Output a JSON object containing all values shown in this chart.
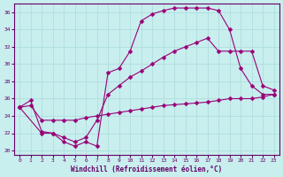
{
  "xlabel": "Windchill (Refroidissement éolien,°C)",
  "xlim": [
    -0.5,
    23.5
  ],
  "ylim": [
    19.5,
    37
  ],
  "yticks": [
    20,
    22,
    24,
    26,
    28,
    30,
    32,
    34,
    36
  ],
  "xticks": [
    0,
    1,
    2,
    3,
    4,
    5,
    6,
    7,
    8,
    9,
    10,
    11,
    12,
    13,
    14,
    15,
    16,
    17,
    18,
    19,
    20,
    21,
    22,
    23
  ],
  "bg_color": "#c8eeee",
  "line_color": "#990077",
  "grid_color": "#b0dede",
  "line1_x": [
    0,
    1,
    2,
    3,
    4,
    5,
    6,
    7,
    8,
    9,
    10,
    11,
    12,
    13,
    14,
    15,
    16,
    17,
    18,
    19,
    20,
    21,
    22,
    23
  ],
  "line1_y": [
    25.0,
    25.8,
    22.2,
    22.0,
    21.0,
    20.5,
    21.0,
    20.5,
    29.0,
    29.5,
    31.5,
    35.0,
    35.8,
    36.2,
    36.5,
    36.5,
    36.5,
    36.5,
    36.2,
    34.0,
    29.5,
    27.5,
    26.5,
    26.5
  ],
  "line2_x": [
    0,
    2,
    3,
    4,
    5,
    6,
    7,
    8,
    9,
    10,
    11,
    12,
    13,
    14,
    15,
    16,
    17,
    18,
    19,
    20,
    21,
    22,
    23
  ],
  "line2_y": [
    25.0,
    22.0,
    22.0,
    21.5,
    21.0,
    21.5,
    23.5,
    26.5,
    27.5,
    28.5,
    29.2,
    30.0,
    30.8,
    31.5,
    32.0,
    32.5,
    33.0,
    31.5,
    31.5,
    31.5,
    31.5,
    27.5,
    27.0
  ],
  "line3_x": [
    0,
    1,
    2,
    3,
    4,
    5,
    6,
    7,
    8,
    9,
    10,
    11,
    12,
    13,
    14,
    15,
    16,
    17,
    18,
    19,
    20,
    21,
    22,
    23
  ],
  "line3_y": [
    25.0,
    25.2,
    23.5,
    23.5,
    23.5,
    23.5,
    23.8,
    24.0,
    24.2,
    24.4,
    24.6,
    24.8,
    25.0,
    25.2,
    25.3,
    25.4,
    25.5,
    25.6,
    25.8,
    26.0,
    26.0,
    26.0,
    26.2,
    26.5
  ],
  "markersize": 2.5
}
